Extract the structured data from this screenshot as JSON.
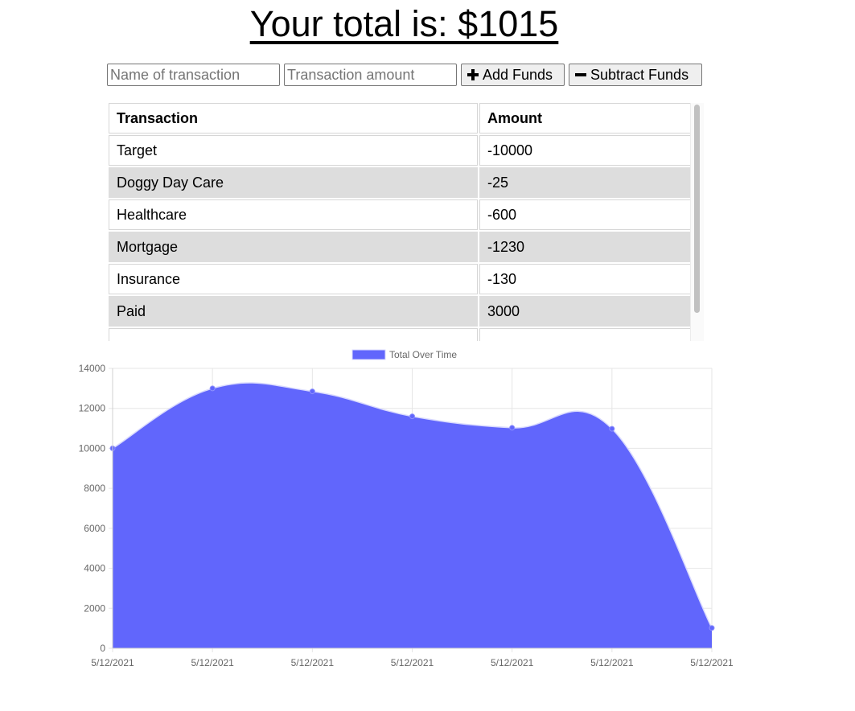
{
  "header": {
    "total_text": "Your total is: $1015"
  },
  "form": {
    "name_placeholder": "Name of transaction",
    "amount_placeholder": "Transaction amount",
    "add_label": "Add Funds",
    "add_icon": "plus-icon",
    "subtract_label": "Subtract Funds",
    "subtract_icon": "minus-icon"
  },
  "table": {
    "headers": [
      "Transaction",
      "Amount"
    ],
    "rows": [
      {
        "name": "Target",
        "amount": "-10000"
      },
      {
        "name": "Doggy Day Care",
        "amount": "-25"
      },
      {
        "name": "Healthcare",
        "amount": "-600"
      },
      {
        "name": "Mortgage",
        "amount": "-1230"
      },
      {
        "name": "Insurance",
        "amount": "-130"
      },
      {
        "name": "Paid",
        "amount": "3000"
      }
    ]
  },
  "chart_data": {
    "type": "area",
    "legend": "top",
    "grid": true,
    "series": [
      {
        "name": "Total Over Time",
        "color": "#6166fc",
        "values": [
          10000,
          13000,
          12850,
          11600,
          11030,
          10980,
          1015
        ]
      }
    ],
    "x": [
      "5/12/2021",
      "5/12/2021",
      "5/12/2021",
      "5/12/2021",
      "5/12/2021",
      "5/12/2021",
      "5/12/2021"
    ],
    "ylim": [
      0,
      14000
    ],
    "yticks": [
      0,
      2000,
      4000,
      6000,
      8000,
      10000,
      12000,
      14000
    ]
  }
}
